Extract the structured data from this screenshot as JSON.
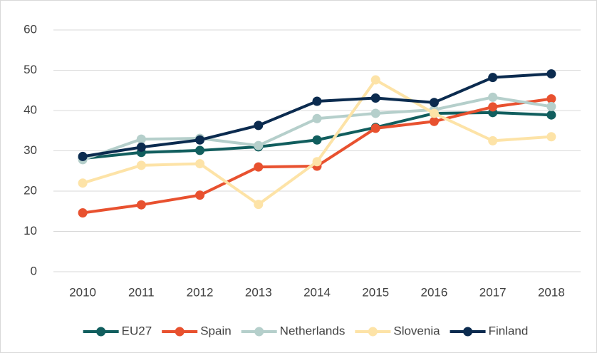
{
  "chart_data": {
    "type": "line",
    "x": [
      "2010",
      "2011",
      "2012",
      "2013",
      "2014",
      "2015",
      "2016",
      "2017",
      "2018"
    ],
    "ylim": [
      0,
      60
    ],
    "yticks": [
      0,
      10,
      20,
      30,
      40,
      50,
      60
    ],
    "grid": true,
    "legend": "bottom",
    "series": [
      {
        "name": "EU27",
        "color": "#115e5e",
        "values": [
          28.1,
          29.6,
          30.1,
          31,
          32.7,
          35.8,
          39.3,
          39.5,
          38.9
        ]
      },
      {
        "name": "Spain",
        "color": "#e8512f",
        "values": [
          14.6,
          16.6,
          19,
          26,
          26.2,
          35.6,
          37.3,
          40.9,
          42.9
        ]
      },
      {
        "name": "Netherlands",
        "color": "#b5cfcb",
        "values": [
          27.8,
          32.9,
          33.1,
          31.3,
          38,
          39.3,
          40.2,
          43.3,
          41
        ]
      },
      {
        "name": "Slovenia",
        "color": "#fde3a7",
        "values": [
          22,
          26.4,
          26.8,
          16.7,
          27.3,
          47.6,
          39.3,
          32.5,
          33.5
        ]
      },
      {
        "name": "Finland",
        "color": "#0b2b4f",
        "values": [
          28.6,
          30.9,
          32.7,
          36.3,
          42.3,
          43.1,
          42,
          48.2,
          49.1
        ]
      }
    ]
  }
}
